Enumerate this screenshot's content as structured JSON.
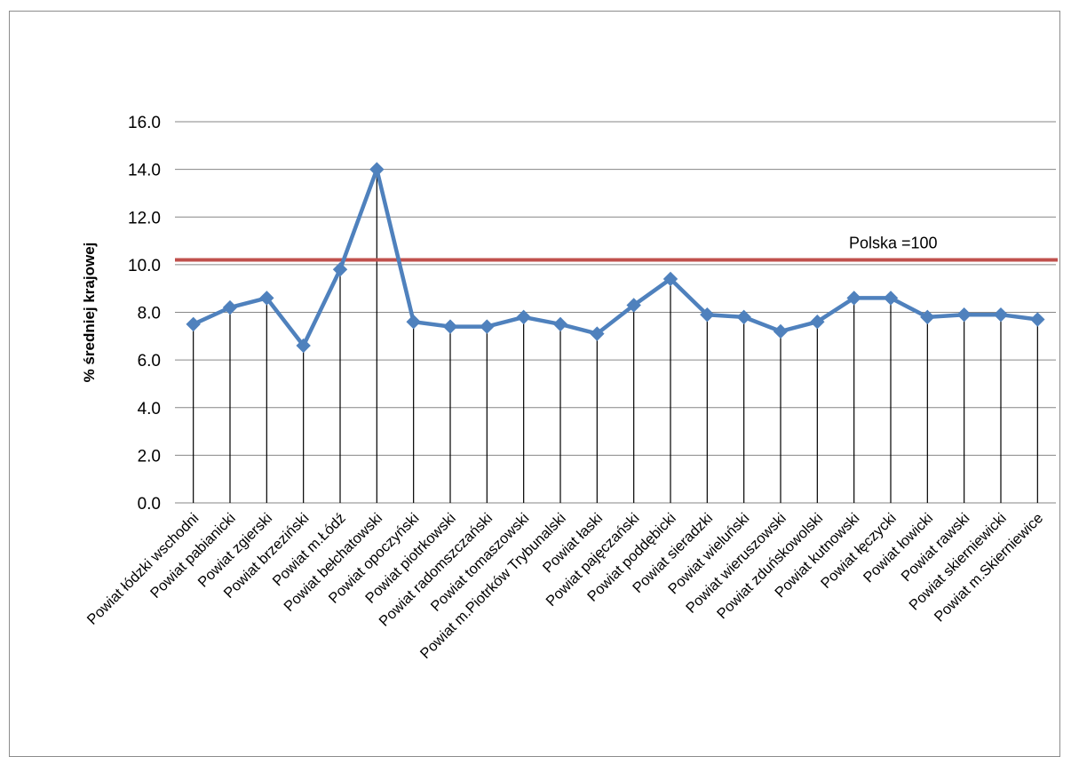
{
  "chart_data": {
    "type": "line",
    "ylabel": "% średniej krajowej",
    "ylim": [
      0,
      16
    ],
    "yticks": [
      "0.0",
      "2.0",
      "4.0",
      "6.0",
      "8.0",
      "10.0",
      "12.0",
      "14.0",
      "16.0"
    ],
    "grid": true,
    "drop_lines": true,
    "categories": [
      "Powiat łódzki wschodni",
      "Powiat pabianicki",
      "Powiat zgierski",
      "Powiat brzeziński",
      "Powiat m.Łódź",
      "Powiat bełchatowski",
      "Powiat opoczyński",
      "Powiat piotrkowski",
      "Powiat radomszczański",
      "Powiat tomaszowski",
      "Powiat m.Piotrków Trybunalski",
      "Powiat łaski",
      "Powiat pajęczański",
      "Powiat poddębicki",
      "Powiat sieradzki",
      "Powiat wieluński",
      "Powiat wieruszowski",
      "Powiat zduńskowolski",
      "Powiat kutnowski",
      "Powiat łęczycki",
      "Powiat łowicki",
      "Powiat rawski",
      "Powiat skierniewicki",
      "Powiat m.Skierniewice"
    ],
    "series": [
      {
        "color": "#4f81bd",
        "marker": "diamond",
        "values": [
          7.5,
          8.2,
          8.6,
          6.6,
          9.8,
          14.0,
          7.6,
          7.4,
          7.4,
          7.8,
          7.5,
          7.1,
          8.3,
          9.4,
          7.9,
          7.8,
          7.2,
          7.6,
          8.6,
          8.6,
          7.8,
          7.9,
          7.9,
          7.7
        ]
      }
    ],
    "reference_line": {
      "value": 10.2,
      "label": "Polska =100",
      "color": "#c0504d"
    },
    "gridline_color": "#868686",
    "dropline_color": "#000000"
  }
}
